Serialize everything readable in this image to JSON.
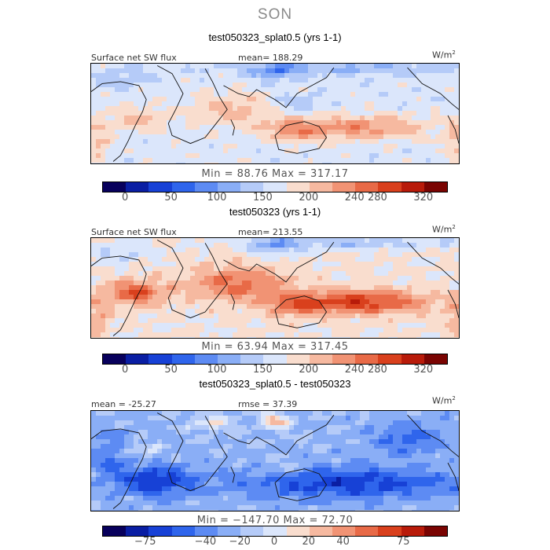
{
  "season": "SON",
  "units": {
    "base": "W/m",
    "exp": "2"
  },
  "chart_data": [
    {
      "type": "heatmap",
      "title": "test050323_splat0.5 (yrs 1-1)",
      "variable": "Surface net SW flux",
      "stat_left": "",
      "stat_right": "mean= 188.29",
      "min_max": "Min =  88.76  Max = 317.17",
      "colorbar_ticks": [
        "0",
        "50",
        "100",
        "150",
        "200",
        "240",
        "280",
        "320"
      ],
      "colorbar_colors": [
        "#08005c",
        "#0a1ea3",
        "#1741d6",
        "#2f65ec",
        "#5d8bf3",
        "#8aaef6",
        "#b5cbf8",
        "#dbe6fb",
        "#f9ddce",
        "#f6b9a0",
        "#f19374",
        "#e86a47",
        "#d9401d",
        "#b81b0a",
        "#7a0402"
      ],
      "levels": [
        0,
        50,
        100,
        150,
        200,
        240,
        280,
        320
      ],
      "vmin": -25,
      "vmax": 345,
      "pattern": "control_low"
    },
    {
      "type": "heatmap",
      "title": "test050323 (yrs 1-1)",
      "variable": "Surface net SW flux",
      "stat_left": "",
      "stat_right": "mean= 213.55",
      "min_max": "Min =  63.94  Max = 317.45",
      "colorbar_ticks": [
        "0",
        "50",
        "100",
        "150",
        "200",
        "240",
        "280",
        "320"
      ],
      "colorbar_colors": [
        "#08005c",
        "#0a1ea3",
        "#1741d6",
        "#2f65ec",
        "#5d8bf3",
        "#8aaef6",
        "#b5cbf8",
        "#dbe6fb",
        "#f9ddce",
        "#f6b9a0",
        "#f19374",
        "#e86a47",
        "#d9401d",
        "#b81b0a",
        "#7a0402"
      ],
      "levels": [
        0,
        50,
        100,
        150,
        200,
        240,
        280,
        320
      ],
      "vmin": -25,
      "vmax": 345,
      "pattern": "control_high"
    },
    {
      "type": "heatmap",
      "title": "test050323_splat0.5 - test050323",
      "variable": "",
      "stat_left": "mean = -25.27",
      "stat_right": "rmse =   37.39",
      "min_max": "Min = −147.70  Max =   72.70",
      "colorbar_ticks": [
        "−75",
        "−40",
        "−20",
        "0",
        "20",
        "40",
        "75"
      ],
      "colorbar_colors": [
        "#08005c",
        "#0a1ea3",
        "#1741d6",
        "#2f65ec",
        "#5d8bf3",
        "#8aaef6",
        "#b5cbf8",
        "#dbe6fb",
        "#f9ddce",
        "#f6b9a0",
        "#f19374",
        "#e86a47",
        "#d9401d",
        "#b81b0a",
        "#7a0402"
      ],
      "levels": [
        -75,
        -40,
        -20,
        0,
        20,
        40,
        75
      ],
      "vmin": -100,
      "vmax": 100,
      "pattern": "difference"
    }
  ]
}
